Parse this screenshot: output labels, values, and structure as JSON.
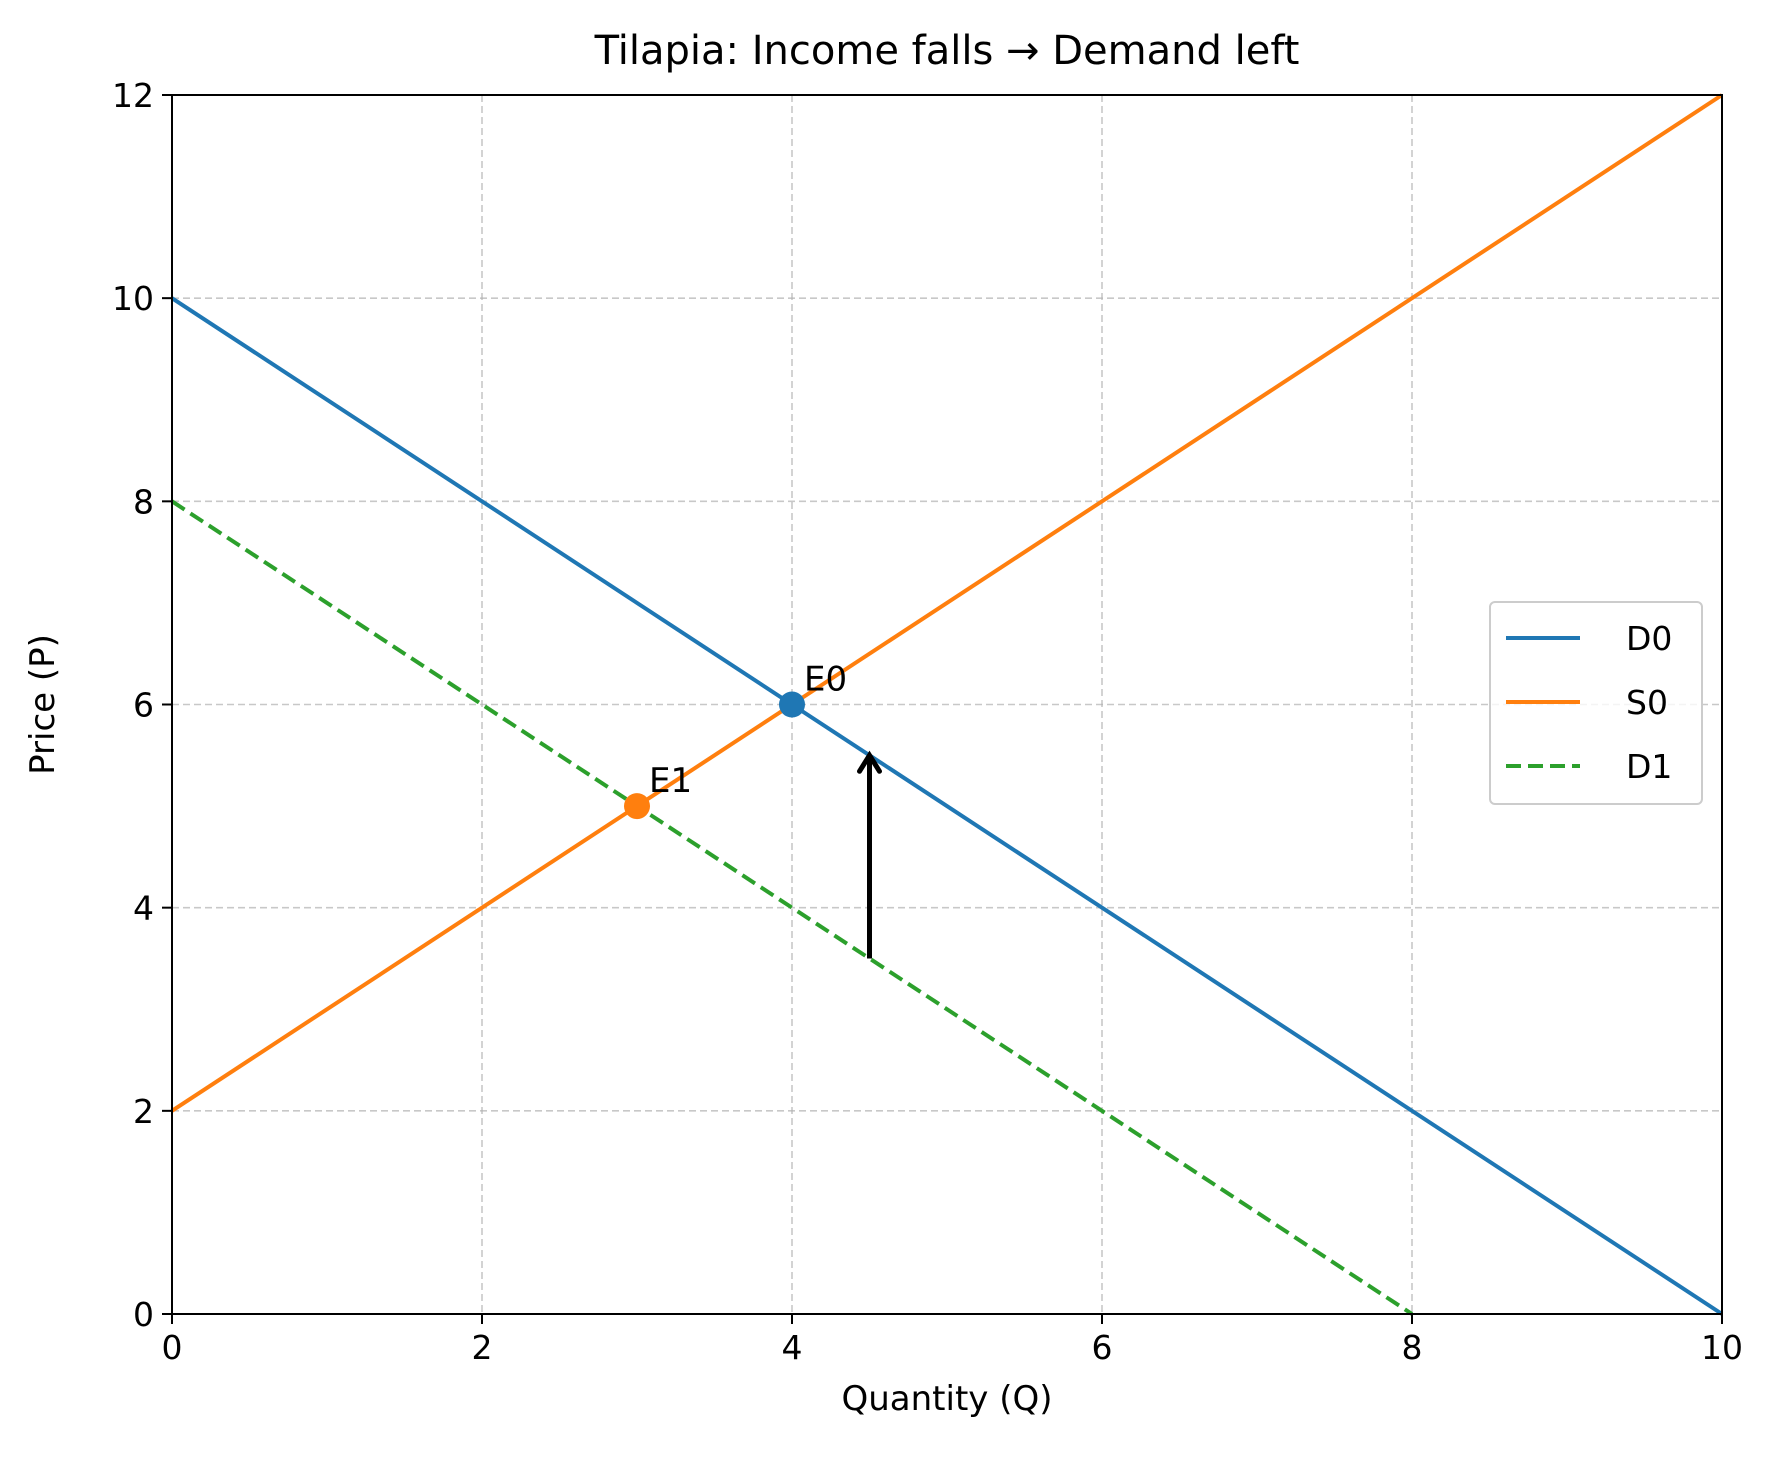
{
  "chart_data": {
    "type": "line",
    "title": "Tilapia: Income falls → Demand left",
    "xlabel": "Quantity (Q)",
    "ylabel": "Price (P)",
    "xlim": [
      0,
      10
    ],
    "ylim": [
      0,
      12
    ],
    "xticks": [
      0,
      2,
      4,
      6,
      8,
      10
    ],
    "yticks": [
      0,
      2,
      4,
      6,
      8,
      10,
      12
    ],
    "grid": true,
    "legend_position": "center-right",
    "series": [
      {
        "name": "D0",
        "x": [
          0,
          10
        ],
        "y": [
          10,
          0
        ],
        "color": "#1f77b4",
        "style": "solid"
      },
      {
        "name": "S0",
        "x": [
          0,
          10
        ],
        "y": [
          2,
          12
        ],
        "color": "#ff7f0e",
        "style": "solid"
      },
      {
        "name": "D1",
        "x": [
          0,
          8
        ],
        "y": [
          8,
          0
        ],
        "color": "#2ca02c",
        "style": "dashed"
      }
    ],
    "points": [
      {
        "label": "E0",
        "x": 4,
        "y": 6,
        "color": "#1f77b4"
      },
      {
        "label": "E1",
        "x": 3,
        "y": 5,
        "color": "#ff7f0e"
      }
    ],
    "arrow": {
      "x": 4.5,
      "y_from": 3.5,
      "y_to": 5.5,
      "color": "#000000"
    }
  }
}
